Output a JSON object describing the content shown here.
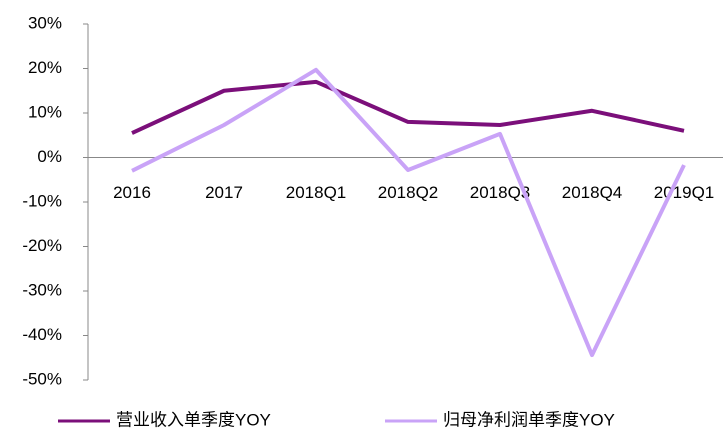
{
  "chart_data": {
    "type": "line",
    "categories": [
      "2016",
      "2017",
      "2018Q1",
      "2018Q2",
      "2018Q3",
      "2018Q4",
      "2019Q1"
    ],
    "series": [
      {
        "name": "营业收入单季度YOY",
        "color": "#7b0f7a",
        "values": [
          5.5,
          15,
          17,
          8,
          7.3,
          10.5,
          6
        ]
      },
      {
        "name": "归母净利润单季度YOY",
        "color": "#c9a3f7",
        "values": [
          -3,
          7.3,
          19.7,
          -2.8,
          5.3,
          -44.4,
          -1.7
        ]
      }
    ],
    "ylim": [
      -50,
      30
    ],
    "yticks": [
      {
        "value": -50,
        "label": "-50%"
      },
      {
        "value": -40,
        "label": "-40%"
      },
      {
        "value": -30,
        "label": "-30%"
      },
      {
        "value": -20,
        "label": "-20%"
      },
      {
        "value": -10,
        "label": "-10%"
      },
      {
        "value": 0,
        "label": "0%"
      },
      {
        "value": 10,
        "label": "10%"
      },
      {
        "value": 20,
        "label": "20%"
      },
      {
        "value": 30,
        "label": "30%"
      }
    ],
    "legend": "bottom"
  }
}
